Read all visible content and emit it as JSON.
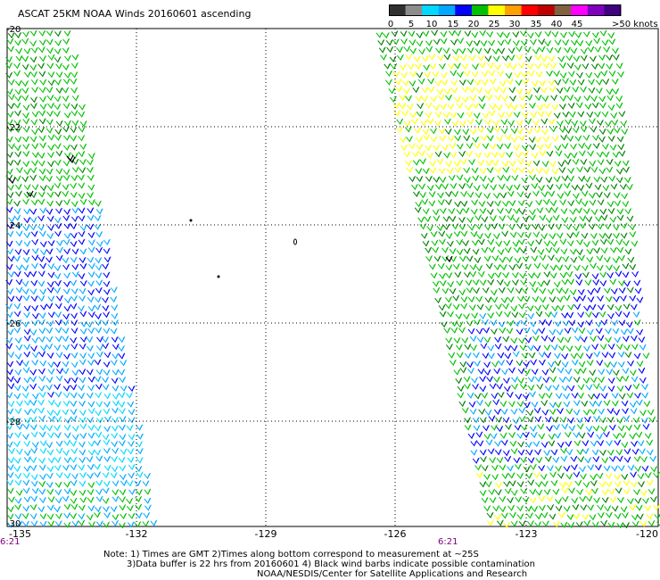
{
  "title": "ASCAT 25KM NOAA Winds 20160601 ascending",
  "legend": {
    "ticks": [
      "0",
      "5",
      "10",
      "15",
      "20",
      "25",
      "30",
      "35",
      "40",
      "45",
      ">50 knots"
    ],
    "colors": [
      "#303030",
      "#8c8c8c",
      "#00d8ff",
      "#00a8ff",
      "#0000ff",
      "#00c000",
      "#ffff00",
      "#ffa000",
      "#ff0000",
      "#c00000",
      "#806040",
      "#ff00ff",
      "#8000c0",
      "#400080"
    ]
  },
  "axes": {
    "lat_labels": [
      "-20",
      "-22",
      "-24",
      "-26",
      "-28",
      "-30"
    ],
    "lon_labels": [
      "-135",
      "-132",
      "-129",
      "-126",
      "-123",
      "-120"
    ]
  },
  "time_labels": [
    "6:21",
    "6:21"
  ],
  "notes": [
    "Note: 1) Times are GMT 2)Times along bottom correspond to measurement at ~25S",
    "3)Data buffer is 22 hrs from 20160601 4) Black wind barbs indicate possible contamination",
    "NOAA/NESDIS/Center for Satellite Applications and Research"
  ]
}
